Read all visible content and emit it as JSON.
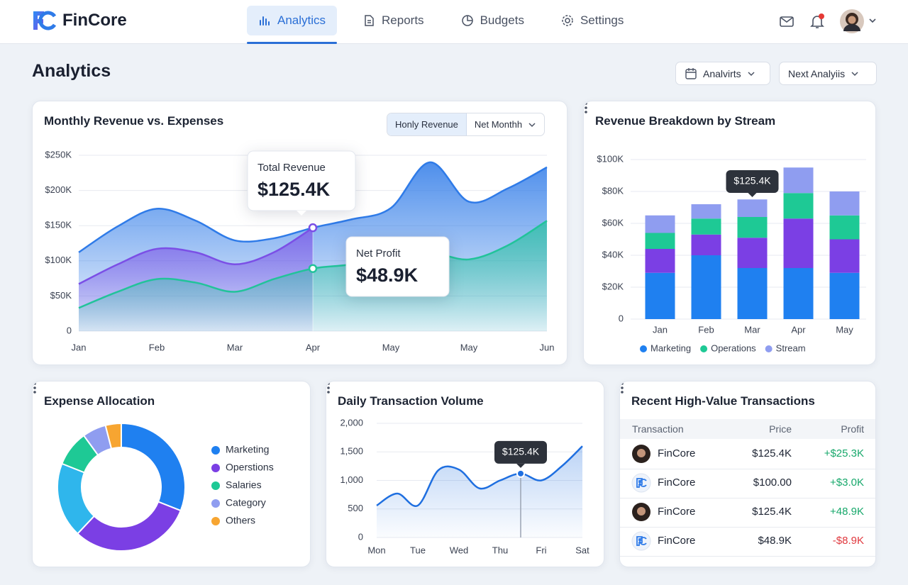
{
  "header": {
    "brand": "FinCore",
    "nav": [
      "Analytics",
      "Reports",
      "Budgets",
      "Settings"
    ]
  },
  "page": {
    "title": "Analytics",
    "filters": [
      "Analvirts",
      "Next Analyiis"
    ]
  },
  "chart_data": [
    {
      "type": "area",
      "title": "Monthly Revenue vs. Expenses",
      "toggles": [
        "Honly Revenue",
        "Net Monthh"
      ],
      "categories": [
        "Jan",
        null,
        "Feb",
        null,
        "Mar",
        null,
        "Apr",
        null,
        "May",
        null,
        "May",
        null,
        "Jun"
      ],
      "series": [
        {
          "color": "#2f7be8",
          "values": [
            112000,
            149000,
            174000,
            157000,
            129000,
            132000,
            147000,
            159000,
            175000,
            240000,
            184000,
            203000,
            233000
          ]
        },
        {
          "color": "#7b4fe6",
          "values": [
            67000,
            95000,
            117000,
            112000,
            95000,
            112000,
            147000,
            null,
            null,
            null,
            null,
            null,
            null
          ]
        },
        {
          "color": "#22c39a",
          "values": [
            33000,
            56000,
            74000,
            69000,
            56000,
            74000,
            89000,
            95000,
            107000,
            112000,
            102000,
            122000,
            157000
          ]
        }
      ],
      "ylim": [
        0,
        250000
      ],
      "yticks": [
        0,
        {
          "value": 50000,
          "label": "$50K"
        },
        {
          "value": 100000,
          "label": "$100K"
        },
        {
          "value": 150000,
          "label": "$150K"
        },
        {
          "value": 200000,
          "label": "$200K"
        },
        {
          "value": 250000,
          "label": "$250K"
        }
      ],
      "grid": true,
      "annotations": [
        {
          "title": "Total Revenue",
          "text": "$125.4K"
        },
        {
          "title": "Net Profit",
          "text": "$48.9K"
        }
      ]
    },
    {
      "type": "bar",
      "stacked": true,
      "title": "Revenue Breakdown by Stream",
      "categories": [
        "Jan",
        "Feb",
        "Mar",
        "Apr",
        "May"
      ],
      "series": [
        {
          "name": "Marketing",
          "color": "#1f80f0",
          "values": [
            29000,
            40000,
            32000,
            32000,
            29000
          ]
        },
        {
          "color": "#7b3fe4",
          "values": [
            15000,
            13000,
            19000,
            31000,
            21000
          ]
        },
        {
          "name": "Operations",
          "color": "#1ec995",
          "values": [
            10000,
            10000,
            13000,
            16000,
            15000
          ]
        },
        {
          "name": "Stream",
          "color": "#8f9df0",
          "values": [
            11000,
            9000,
            11000,
            16000,
            15000
          ]
        }
      ],
      "ylim": [
        0,
        100000
      ],
      "yticks": [
        0,
        {
          "value": 20000,
          "label": "$20K"
        },
        {
          "value": 40000,
          "label": "$40K"
        },
        {
          "value": 60000,
          "label": "$60K"
        },
        {
          "value": 80000,
          "label": "$80K"
        },
        {
          "value": 100000,
          "label": "$100K"
        }
      ],
      "grid": true,
      "annotations": [
        {
          "text": "$125.4K"
        }
      ]
    },
    {
      "type": "pie",
      "donut": true,
      "title": "Expense Allocation",
      "categories": [
        "Marketing",
        "Operstions",
        null,
        "Salaries",
        "Category",
        "Others"
      ],
      "values": [
        31,
        31,
        19,
        9,
        6,
        4
      ],
      "colors": [
        "#1f80f0",
        "#7b3fe4",
        "#2fb6ec",
        "#1ec995",
        "#8f9df0",
        "#f7a531"
      ]
    },
    {
      "type": "line",
      "title": "Daily Transaction Volume",
      "categories": [
        "Mon",
        null,
        "Tue",
        null,
        "Wed",
        null,
        "Thu",
        null,
        "Fri",
        null,
        "Sat"
      ],
      "series": [
        {
          "color": "#1f6fe0",
          "values": [
            560,
            770,
            560,
            1180,
            1190,
            860,
            1000,
            1120,
            1000,
            1250,
            1600
          ]
        }
      ],
      "ylim": [
        0,
        2000
      ],
      "yticks": [
        0,
        500,
        {
          "value": 1000,
          "label": "1,000"
        },
        {
          "value": 1500,
          "label": "1,500"
        },
        {
          "value": 2000,
          "label": "2,000"
        }
      ],
      "grid": true,
      "annotations": [
        {
          "text": "$125.4K"
        }
      ]
    }
  ],
  "table": {
    "title": "Recent High-Value Transactions",
    "columns": [
      "Transaction",
      "Price",
      "Profit"
    ],
    "rows": [
      [
        "FinCore",
        "$125.4K",
        "+$25.3K"
      ],
      [
        "FinCore",
        "$100.00",
        "+$3.0K"
      ],
      [
        "FinCore",
        "$125.4K",
        "+48.9K"
      ],
      [
        "FinCore",
        "$48.9K",
        "-$8.9K"
      ]
    ]
  }
}
